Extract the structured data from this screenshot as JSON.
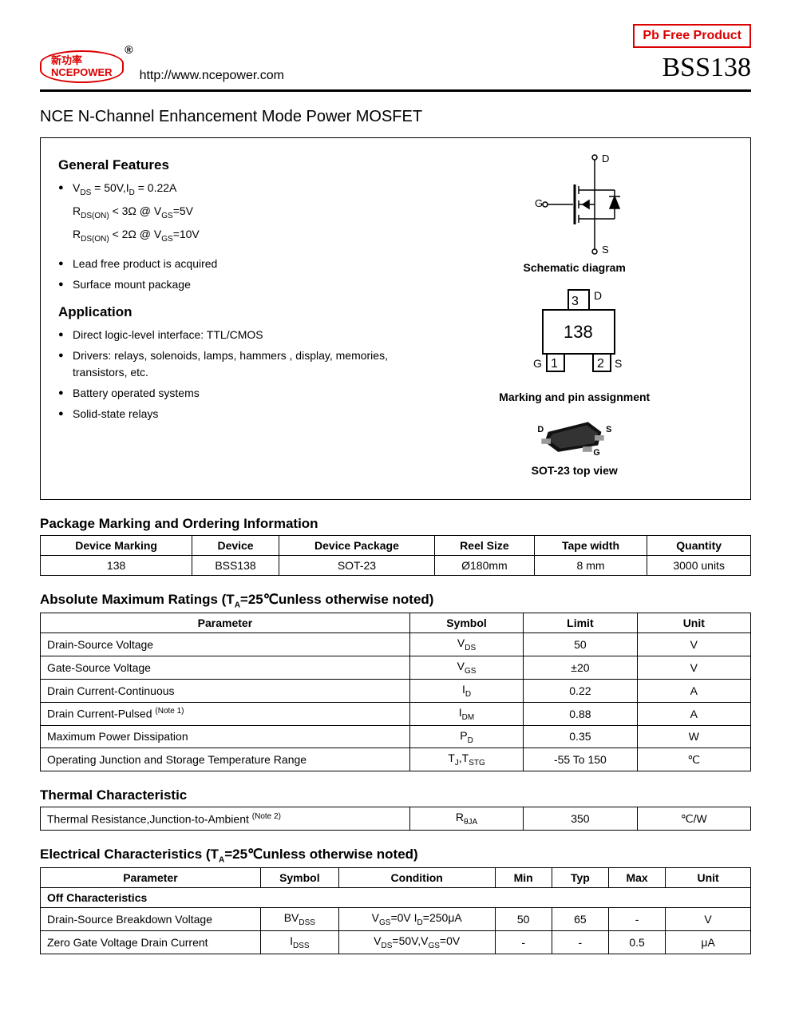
{
  "header": {
    "logo_cn": "新功率",
    "logo_en": "NCEPOWER",
    "url": "http://www.ncepower.com",
    "pb_free": "Pb Free Product",
    "part": "BSS138"
  },
  "title": "NCE N-Channel Enhancement Mode Power MOSFET",
  "features": {
    "heading": "General Features",
    "spec1_a": "V",
    "spec1_b": " = 50V,I",
    "spec1_c": " = 0.22A",
    "spec2_a": "R",
    "spec2_b": " < 3Ω @ V",
    "spec2_c": "=5V",
    "spec3_a": "R",
    "spec3_b": " < 2Ω @ V",
    "spec3_c": "=10V",
    "f4": "Lead free product is acquired",
    "f5": "Surface mount package"
  },
  "application": {
    "heading": "Application",
    "items": [
      "Direct logic-level interface: TTL/CMOS",
      "Drivers: relays, solenoids, lamps, hammers , display, memories, transistors, etc.",
      "Battery operated systems",
      "Solid-state relays"
    ]
  },
  "diagrams": {
    "schematic_cap": "Schematic diagram",
    "marking_cap": "Marking and pin assignment",
    "topview_cap": "SOT-23 top view",
    "mark_label": "138",
    "pin_d": "D",
    "pin_g": "G",
    "pin_s": "S",
    "pin1": "1",
    "pin2": "2",
    "pin3": "3"
  },
  "pkg_table": {
    "title": "Package Marking and Ordering Information",
    "headers": [
      "Device Marking",
      "Device",
      "Device Package",
      "Reel Size",
      "Tape width",
      "Quantity"
    ],
    "rows": [
      [
        "138",
        "BSS138",
        "SOT-23",
        "Ø180mm",
        "8 mm",
        "3000 units"
      ]
    ]
  },
  "abs_table": {
    "title": "Absolute Maximum Ratings (T",
    "title_sub": "A",
    "title_tail": "=25℃unless otherwise noted)",
    "headers": [
      "Parameter",
      "Symbol",
      "Limit",
      "Unit"
    ],
    "rows": [
      {
        "p": "Drain-Source Voltage",
        "sym": "V",
        "sub": "DS",
        "lim": "50",
        "u": "V"
      },
      {
        "p": "Gate-Source Voltage",
        "sym": "V",
        "sub": "GS",
        "lim": "±20",
        "u": "V"
      },
      {
        "p": "Drain Current-Continuous",
        "sym": "I",
        "sub": "D",
        "lim": "0.22",
        "u": "A"
      },
      {
        "p": "Drain Current-Pulsed ",
        "note": "(Note 1)",
        "sym": "I",
        "sub": "DM",
        "lim": "0.88",
        "u": "A"
      },
      {
        "p": "Maximum Power Dissipation",
        "sym": "P",
        "sub": "D",
        "lim": "0.35",
        "u": "W"
      },
      {
        "p": "Operating Junction and Storage Temperature Range",
        "sym": "T",
        "sub": "J",
        "sym2": ",T",
        "sub2": "STG",
        "lim": "-55 To 150",
        "u": "℃"
      }
    ]
  },
  "therm_table": {
    "title": "Thermal Characteristic",
    "rows": [
      {
        "p": "Thermal Resistance,Junction-to-Ambient ",
        "note": "(Note 2)",
        "sym": "R",
        "sub": "θJA",
        "lim": "350",
        "u": "℃/W"
      }
    ]
  },
  "elec_table": {
    "title": "Electrical Characteristics (T",
    "title_sub": "A",
    "title_tail": "=25℃unless otherwise noted)",
    "headers": [
      "Parameter",
      "Symbol",
      "Condition",
      "Min",
      "Typ",
      "Max",
      "Unit"
    ],
    "section": "Off Characteristics",
    "rows": [
      {
        "p": "Drain-Source Breakdown Voltage",
        "sym": "BV",
        "sub": "DSS",
        "cond_a": "V",
        "cond_as": "GS",
        "cond_b": "=0V I",
        "cond_bs": "D",
        "cond_c": "=250μA",
        "min": "50",
        "typ": "65",
        "max": "-",
        "u": "V"
      },
      {
        "p": "Zero Gate Voltage Drain Current",
        "sym": "I",
        "sub": "DSS",
        "cond_a": "V",
        "cond_as": "DS",
        "cond_b": "=50V,V",
        "cond_bs": "GS",
        "cond_c": "=0V",
        "min": "-",
        "typ": "-",
        "max": "0.5",
        "u": "μA"
      }
    ]
  }
}
